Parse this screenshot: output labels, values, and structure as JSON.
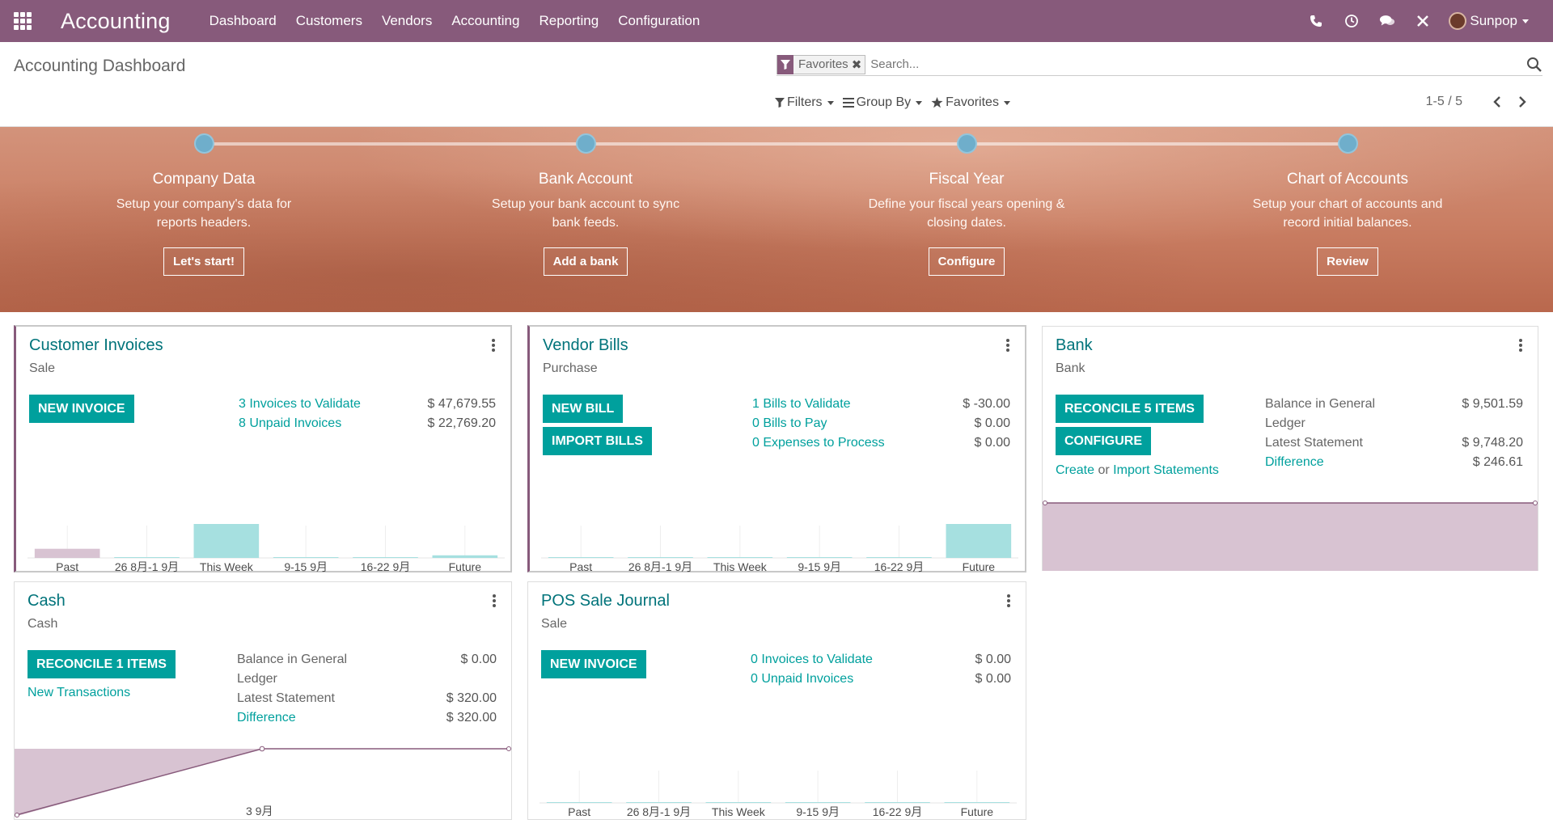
{
  "navbar": {
    "app_name": "Accounting",
    "menu": [
      "Dashboard",
      "Customers",
      "Vendors",
      "Accounting",
      "Reporting",
      "Configuration"
    ],
    "user_name": "Sunpop",
    "icons": [
      "apps-grid-icon",
      "phone-icon",
      "clock-icon",
      "chat-icon",
      "debug-tools-icon"
    ]
  },
  "control": {
    "title": "Accounting Dashboard",
    "facet_label": "Favorites",
    "search_placeholder": "Search...",
    "filters_label": "Filters",
    "groupby_label": "Group By",
    "favorites_label": "Favorites",
    "pager": "1-5 / 5"
  },
  "banner": {
    "steps": [
      {
        "title": "Company Data",
        "desc": "Setup your company's data for reports headers.",
        "button": "Let's start!"
      },
      {
        "title": "Bank Account",
        "desc": "Setup your bank account to sync bank feeds.",
        "button": "Add a bank"
      },
      {
        "title": "Fiscal Year",
        "desc": "Define your fiscal years opening & closing dates.",
        "button": "Configure"
      },
      {
        "title": "Chart of Accounts",
        "desc": "Setup your chart of accounts and record initial balances.",
        "button": "Review"
      }
    ]
  },
  "cards": {
    "customer_invoices": {
      "title": "Customer Invoices",
      "subtitle": "Sale",
      "button": "NEW INVOICE",
      "rows": [
        {
          "label": "3 Invoices to Validate",
          "value": "$ 47,679.55"
        },
        {
          "label": "8 Unpaid Invoices",
          "value": "$ 22,769.20"
        }
      ]
    },
    "vendor_bills": {
      "title": "Vendor Bills",
      "subtitle": "Purchase",
      "button": "NEW BILL",
      "button2": "IMPORT BILLS",
      "rows": [
        {
          "label": "1 Bills to Validate",
          "value": "$ -30.00"
        },
        {
          "label": "0 Bills to Pay",
          "value": "$ 0.00"
        },
        {
          "label": "0 Expenses to Process",
          "value": "$ 0.00"
        }
      ]
    },
    "bank": {
      "title": "Bank",
      "subtitle": "Bank",
      "button": "RECONCILE 5 ITEMS",
      "button2": "CONFIGURE",
      "create_link": "Create",
      "or_text": "or",
      "import_link": "Import Statements",
      "rows": [
        {
          "label": "Balance in General Ledger",
          "value": "$ 9,501.59"
        },
        {
          "label": "Latest Statement",
          "value": "$ 9,748.20"
        },
        {
          "label": "Difference",
          "value": "$ 246.61"
        }
      ]
    },
    "cash": {
      "title": "Cash",
      "subtitle": "Cash",
      "button": "RECONCILE 1 ITEMS",
      "new_transactions": "New Transactions",
      "rows": [
        {
          "label": "Balance in General Ledger",
          "value": "$ 0.00"
        },
        {
          "label": "Latest Statement",
          "value": "$ 320.00"
        },
        {
          "label": "Difference",
          "value": "$ 320.00"
        }
      ],
      "x_label": "3 9月"
    },
    "pos_sale": {
      "title": "POS Sale Journal",
      "subtitle": "Sale",
      "button": "NEW INVOICE",
      "rows": [
        {
          "label": "0 Invoices to Validate",
          "value": "$ 0.00"
        },
        {
          "label": "0 Unpaid Invoices",
          "value": "$ 0.00"
        }
      ]
    }
  },
  "chart_data": [
    {
      "type": "bar",
      "title": "Customer Invoices",
      "categories": [
        "Past",
        "26 8月-1 9月",
        "This Week",
        "9-15 9月",
        "16-22 9月",
        "Future"
      ],
      "values": [
        3500,
        0,
        13000,
        0,
        0,
        1000
      ],
      "colors": [
        "#d8c3d2",
        "#a6e0e0",
        "#a6e0e0",
        "#a6e0e0",
        "#a6e0e0",
        "#a6e0e0"
      ]
    },
    {
      "type": "bar",
      "title": "Vendor Bills",
      "categories": [
        "Past",
        "26 8月-1 9月",
        "This Week",
        "9-15 9月",
        "16-22 9月",
        "Future"
      ],
      "values": [
        0,
        0,
        0,
        0,
        0,
        13000
      ],
      "colors": [
        "#a6e0e0",
        "#a6e0e0",
        "#a6e0e0",
        "#a6e0e0",
        "#a6e0e0",
        "#a6e0e0"
      ]
    },
    {
      "type": "bar",
      "title": "POS Sale Journal",
      "categories": [
        "Past",
        "26 8月-1 9月",
        "This Week",
        "9-15 9月",
        "16-22 9月",
        "Future"
      ],
      "values": [
        0,
        0,
        0,
        0,
        0,
        0
      ],
      "colors": [
        "#a6e0e0",
        "#a6e0e0",
        "#a6e0e0",
        "#a6e0e0",
        "#a6e0e0",
        "#a6e0e0"
      ]
    }
  ],
  "colors": {
    "navbar": "#875a7b",
    "primary_button": "#00a09d",
    "title_link": "#00737a",
    "area_fill": "#d8c3d2",
    "bar_fill": "#a6e0e0",
    "step_dot": "#6faecb"
  }
}
